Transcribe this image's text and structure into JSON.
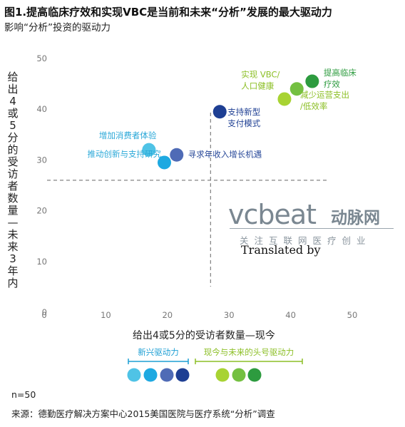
{
  "header": {
    "title": "图1.提高临床疗效和实现VBC是当前和未来“分析”发展的最大驱动力",
    "subtitle": "影响“分析”投资的驱动力"
  },
  "colors": {
    "blue_light": "#4fc3e6",
    "blue_mid": "#1ea9e1",
    "blue_slate": "#4f6bb6",
    "blue_dark": "#1e3f93",
    "green_light": "#a8d333",
    "green_mid": "#74c041",
    "green_dark": "#2d9b3f",
    "emerging_label": "#1e9fd4",
    "leading_label": "#8cbf26"
  },
  "chart_data": {
    "type": "scatter",
    "title": "影响“分析”投资的驱动力",
    "xlabel": "给出4或5分的受访者数量—现今",
    "ylabel": "给出4或5分的受访者数量—未来3年内",
    "xlim": [
      0,
      50
    ],
    "ylim": [
      0,
      50
    ],
    "x_ticks": [
      "0",
      "10",
      "20",
      "30",
      "40",
      "50"
    ],
    "y_ticks": [
      "50",
      "40",
      "30",
      "20",
      "10",
      "0"
    ],
    "grid": false,
    "reference_lines": {
      "x": 27,
      "y": 26
    },
    "points": [
      {
        "label": "增加消费者体验",
        "x": 17,
        "y": 32,
        "group": "新兴驱动力",
        "color": "#4fc3e6"
      },
      {
        "label": "推动创新与支持研究",
        "x": 19.5,
        "y": 29.5,
        "group": "新兴驱动力",
        "color": "#1ea9e1"
      },
      {
        "label": "寻求年收入增长机遇",
        "x": 21.5,
        "y": 31,
        "group": "新兴驱动力",
        "color": "#4f6bb6"
      },
      {
        "label": "支持新型支付模式",
        "x": 28.5,
        "y": 39.5,
        "group": "新兴驱动力",
        "color": "#1e3f93"
      },
      {
        "label": "减少运营支出/低效率",
        "x": 39,
        "y": 42,
        "group": "现今与未来的头号驱动力",
        "color": "#a8d333"
      },
      {
        "label": "实现VBC/人口健康",
        "x": 41,
        "y": 44,
        "group": "现今与未来的头号驱动力",
        "color": "#74c041"
      },
      {
        "label": "提高临床疗效",
        "x": 43.5,
        "y": 45.5,
        "group": "现今与未来的头号驱动力",
        "color": "#2d9b3f"
      }
    ],
    "point_labels": [
      {
        "lines": [
          "增加消费者体验"
        ],
        "color": "#2aa8d8"
      },
      {
        "lines": [
          "推动创新与支持研究"
        ],
        "color": "#2aa8d8"
      },
      {
        "lines": [
          "寻求年收入增长机遇"
        ],
        "color": "#2a4a9a"
      },
      {
        "lines": [
          "支持新型",
          "支付模式"
        ],
        "color": "#1e3f93"
      },
      {
        "lines": [
          "减少运营支出",
          "/低效率"
        ],
        "color": "#8cbf26"
      },
      {
        "lines": [
          "实现 VBC/",
          "人口健康"
        ],
        "color": "#8cbf26"
      },
      {
        "lines": [
          "提高临床",
          "疗效"
        ],
        "color": "#2d9b3f"
      }
    ],
    "legend": {
      "placement": "bottom",
      "groups": [
        {
          "name": "新兴驱动力",
          "color": "#1e9fd4",
          "swatches": [
            "#4fc3e6",
            "#1ea9e1",
            "#4f6bb6",
            "#1e3f93"
          ]
        },
        {
          "name": "现今与未来的头号驱动力",
          "color": "#8cbf26",
          "swatches": [
            "#a8d333",
            "#74c041",
            "#2d9b3f"
          ]
        }
      ]
    }
  },
  "footer": {
    "n": "n=50",
    "source": "来源：德勤医疗解决方案中心2015美国医院与医疗系统“分析”调查"
  },
  "watermark": {
    "site": "vcbeat",
    "name_cn": "动脉网",
    "tagline": "关注互联网医疗创业",
    "translated": "Translated by"
  }
}
